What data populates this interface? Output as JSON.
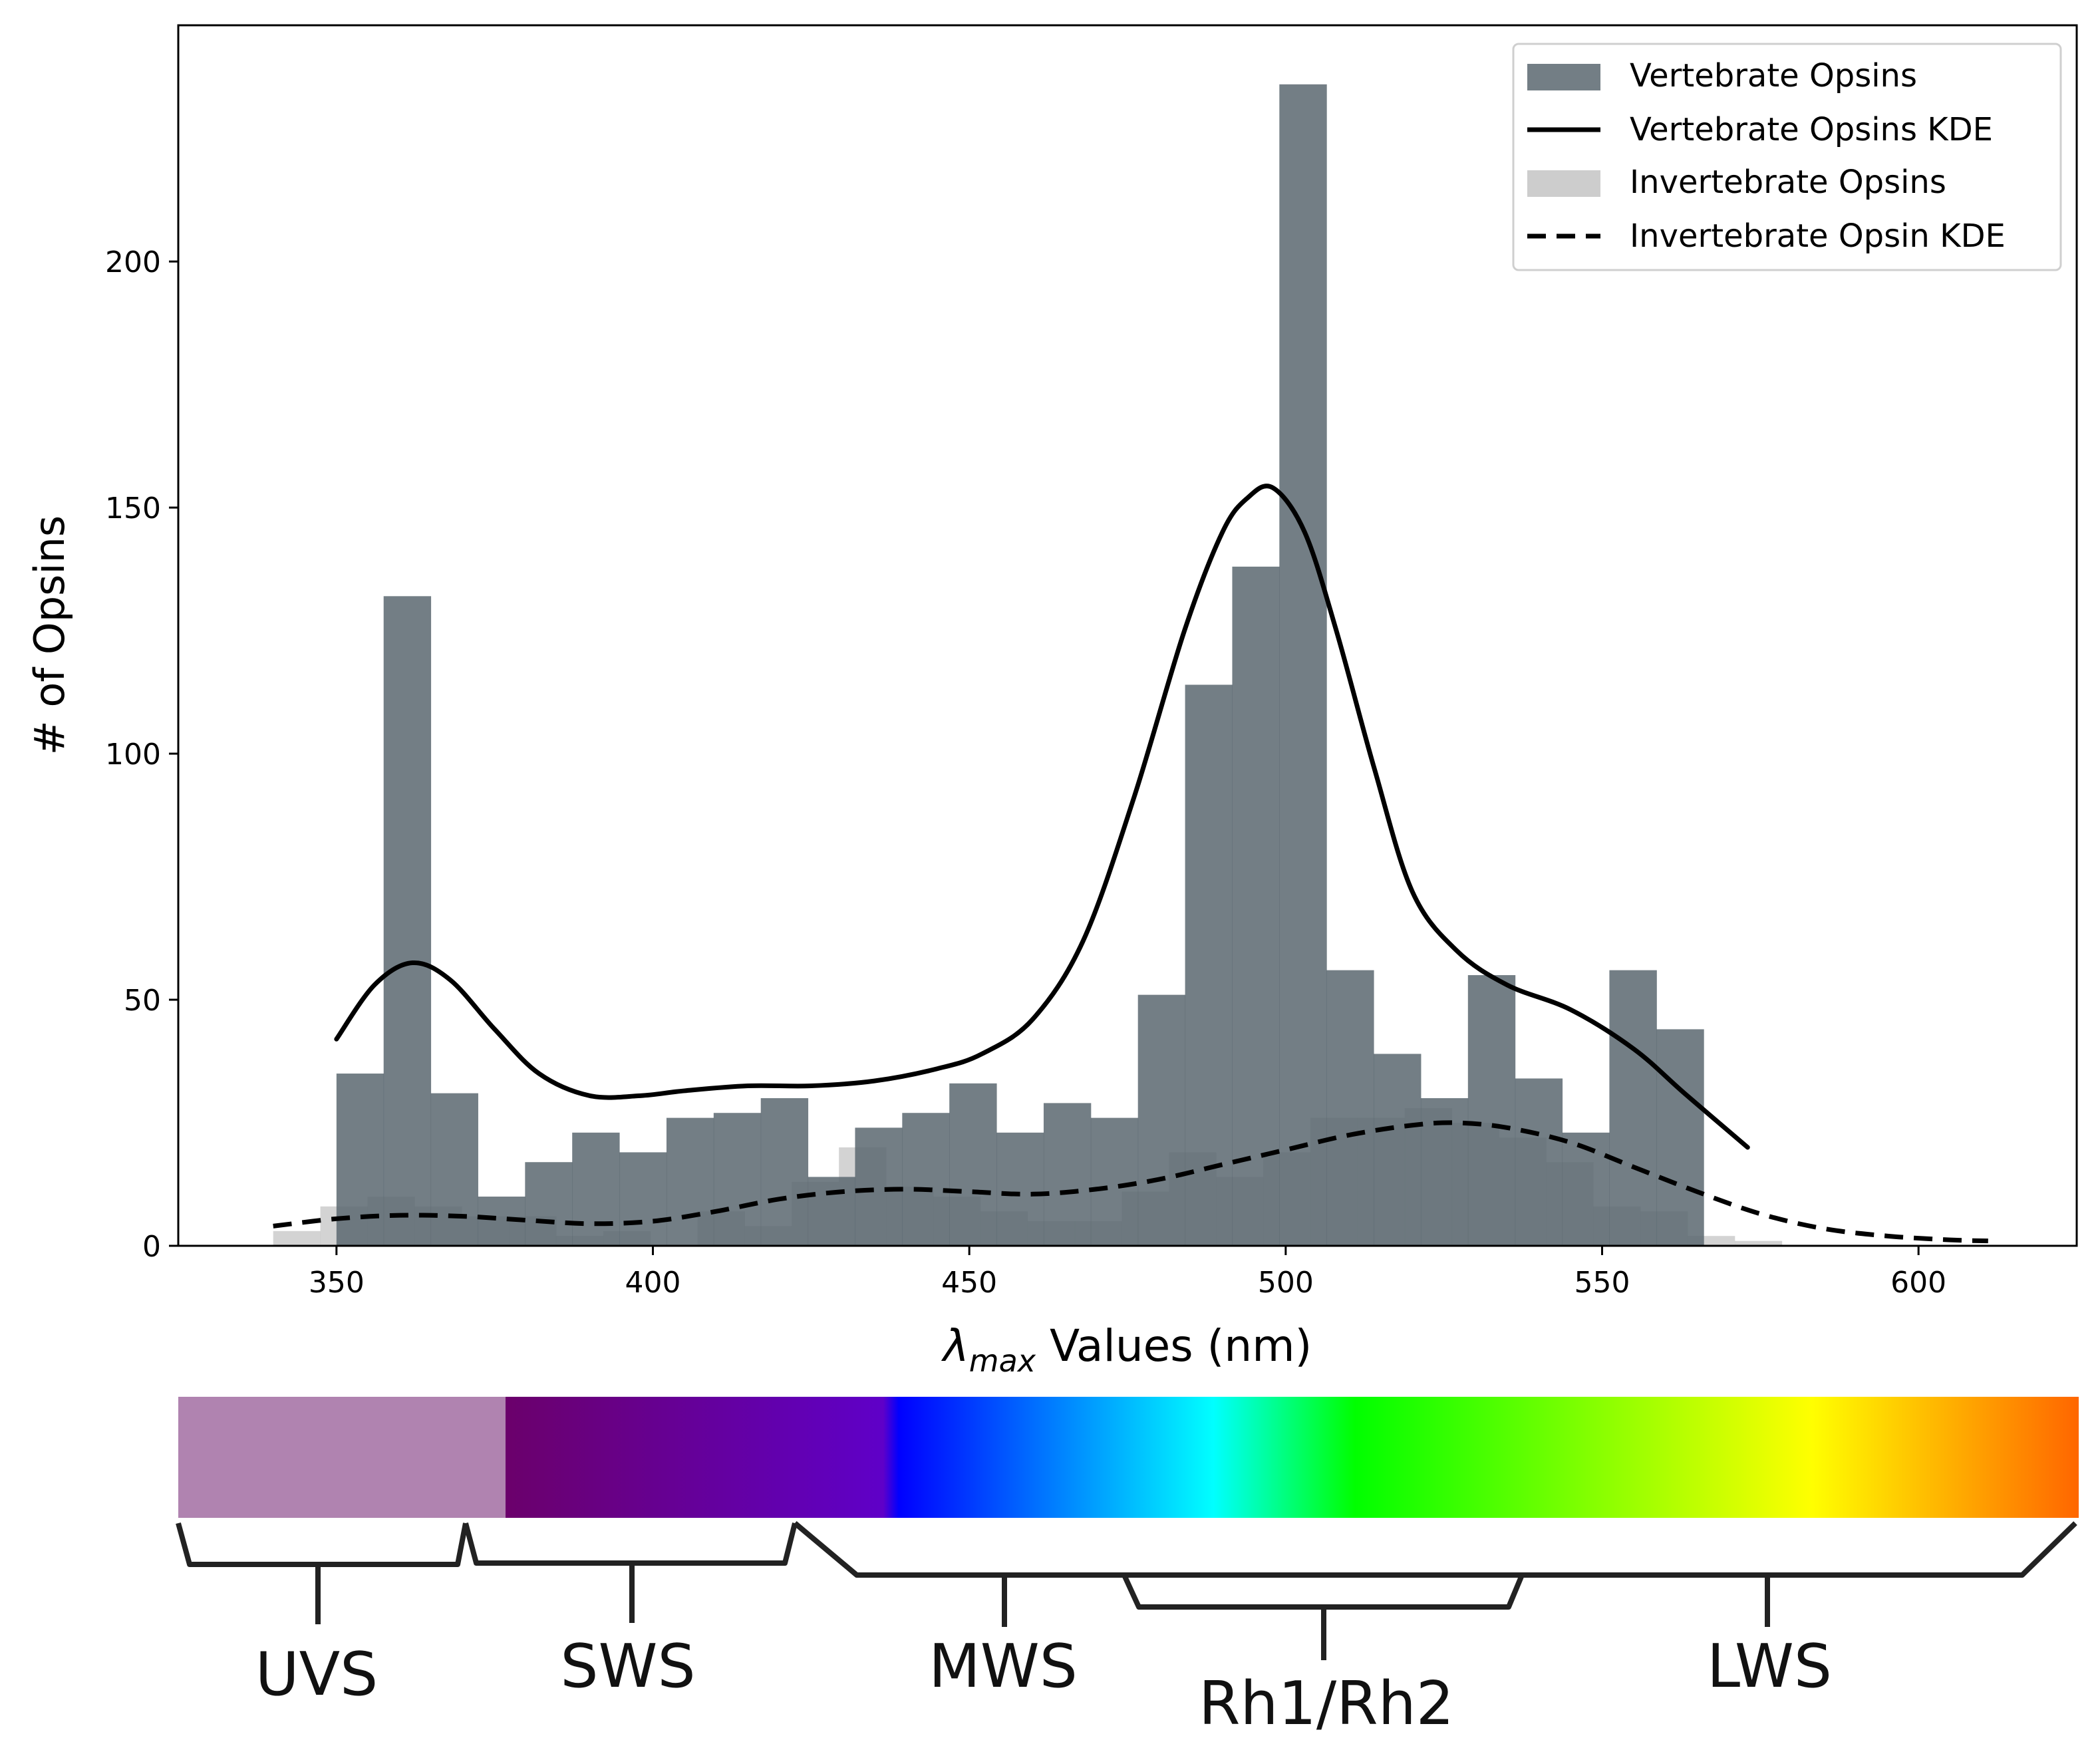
{
  "chart_data": {
    "type": "bar",
    "ylabel": "# of Opsins",
    "xlabel_symbol": "λ",
    "xlabel_subscript": "max",
    "xlabel_rest": " Values (nm)",
    "xlim": [
      325,
      625
    ],
    "ylim": [
      0,
      248
    ],
    "x_ticks": [
      350,
      400,
      450,
      500,
      550,
      600
    ],
    "y_ticks": [
      0,
      50,
      100,
      150,
      200
    ],
    "bin_width": 7.45,
    "legend_position": "top-right",
    "legend": [
      {
        "label": "Vertebrate Opsins",
        "style": "patch",
        "color": "#5b6770"
      },
      {
        "label": "Vertebrate Opsins KDE",
        "style": "solid",
        "color": "#000000"
      },
      {
        "label": "Invertebrate Opsins",
        "style": "patch",
        "color": "#c8c8c8"
      },
      {
        "label": "Invertebrate Opsin KDE",
        "style": "dashed",
        "color": "#000000"
      }
    ],
    "series": [
      {
        "name": "Vertebrate Opsins",
        "color": "#5b6770",
        "opacity": 0.85,
        "bin_start": 350,
        "values": [
          35,
          132,
          31,
          10,
          17,
          23,
          19,
          26,
          27,
          30,
          14,
          24,
          27,
          33,
          23,
          29,
          26,
          51,
          114,
          138,
          236,
          56,
          39,
          30,
          55,
          34,
          23,
          56,
          44
        ]
      },
      {
        "name": "Invertebrate Opsins",
        "color": "#c8c8c8",
        "opacity": 0.8,
        "bin_start": 340,
        "values": [
          3,
          8,
          10,
          8,
          6,
          6,
          2,
          3,
          0,
          7,
          4,
          13,
          20,
          12,
          10,
          7,
          5,
          5,
          11,
          19,
          14,
          19,
          26,
          26,
          28,
          25,
          22,
          17,
          8,
          7,
          2,
          1
        ]
      },
      {
        "name": "Vertebrate Opsins KDE",
        "style": "solid",
        "x": [
          350,
          356,
          362,
          368,
          375,
          382,
          390,
          398,
          405,
          415,
          425,
          435,
          445,
          452,
          460,
          468,
          476,
          484,
          490,
          494,
          498,
          503,
          508,
          514,
          520,
          527,
          535,
          545,
          555,
          563,
          573
        ],
        "y": [
          42,
          53,
          57.5,
          54,
          44,
          35,
          30.5,
          30.5,
          31.5,
          32.5,
          32.5,
          33.5,
          36,
          39,
          46,
          62,
          91,
          125,
          145,
          152,
          154,
          145,
          125,
          97,
          72,
          60,
          53,
          48,
          40,
          31,
          20
        ]
      },
      {
        "name": "Invertebrate Opsin KDE",
        "style": "dashed",
        "x": [
          340,
          350,
          360,
          370,
          380,
          390,
          400,
          410,
          420,
          430,
          440,
          450,
          460,
          470,
          480,
          490,
          500,
          510,
          520,
          527,
          535,
          545,
          555,
          565,
          575,
          585,
          595,
          605,
          611
        ],
        "y": [
          4,
          5.5,
          6.2,
          6,
          5.2,
          4.5,
          5,
          7,
          9.5,
          11,
          11.5,
          11,
          10.5,
          11.5,
          13.5,
          16.5,
          19.5,
          22.5,
          24.5,
          25,
          24,
          21,
          16,
          11,
          6.5,
          3.5,
          2,
          1.2,
          1
        ]
      }
    ]
  },
  "spectrum_bar": {
    "uv_color": "#b083b0",
    "gradient_stops": [
      {
        "offset": 0,
        "color": "#6b006b"
      },
      {
        "offset": 0.24,
        "color": "#5f00c8"
      },
      {
        "offset": 0.25,
        "color": "#0000ff"
      },
      {
        "offset": 0.45,
        "color": "#00ffff"
      },
      {
        "offset": 0.54,
        "color": "#00ff00"
      },
      {
        "offset": 0.83,
        "color": "#ffff00"
      },
      {
        "offset": 1,
        "color": "#ff6600"
      }
    ]
  },
  "brackets": [
    {
      "key": "uvs",
      "label": "UVS"
    },
    {
      "key": "sws",
      "label": "SWS"
    },
    {
      "key": "mws",
      "label": "MWS"
    },
    {
      "key": "rh",
      "label": "Rh1/Rh2"
    },
    {
      "key": "lws",
      "label": "LWS"
    }
  ]
}
